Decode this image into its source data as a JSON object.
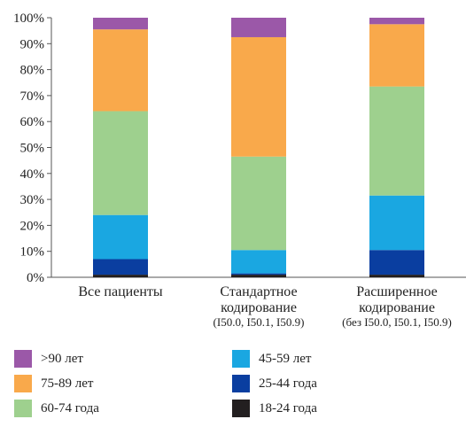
{
  "chart_data": {
    "type": "bar",
    "stacked": true,
    "ylim": [
      0,
      100
    ],
    "yticks": [
      "0%",
      "10%",
      "20%",
      "30%",
      "40%",
      "50%",
      "60%",
      "70%",
      "80%",
      "90%",
      "100%"
    ],
    "grid": false,
    "legend_position": "bottom",
    "categories": [
      {
        "lines": [
          "Все пациенты"
        ],
        "note": ""
      },
      {
        "lines": [
          "Стандартное",
          "кодирование"
        ],
        "note": "(I50.0, I50.1, I50.9)"
      },
      {
        "lines": [
          "Расширенное",
          "кодирование"
        ],
        "note": "(без I50.0, I50.1, I50.9)"
      }
    ],
    "series": [
      {
        "name": "18-24 года",
        "color": "#231f20",
        "values": [
          1,
          1,
          1
        ]
      },
      {
        "name": "25-44 года",
        "color": "#0a3ea0",
        "values": [
          6,
          0.5,
          9.5
        ]
      },
      {
        "name": "45-59 лет",
        "color": "#1aa7e1",
        "values": [
          17,
          9,
          21
        ]
      },
      {
        "name": "60-74 года",
        "color": "#9ed08e",
        "values": [
          40,
          36,
          42
        ]
      },
      {
        "name": "75-89 лет",
        "color": "#f9a94b",
        "values": [
          31.5,
          46,
          24
        ]
      },
      {
        "name": ">90 лет",
        "color": "#9b58a8",
        "values": [
          4.5,
          7.5,
          2.5
        ]
      }
    ]
  },
  "legend": [
    {
      "label": ">90 лет",
      "color": "#9b58a8"
    },
    {
      "label": "75-89 лет",
      "color": "#f9a94b"
    },
    {
      "label": "60-74 года",
      "color": "#9ed08e"
    },
    {
      "label": "45-59 лет",
      "color": "#1aa7e1"
    },
    {
      "label": "25-44 года",
      "color": "#0a3ea0"
    },
    {
      "label": "18-24 года",
      "color": "#231f20"
    }
  ]
}
